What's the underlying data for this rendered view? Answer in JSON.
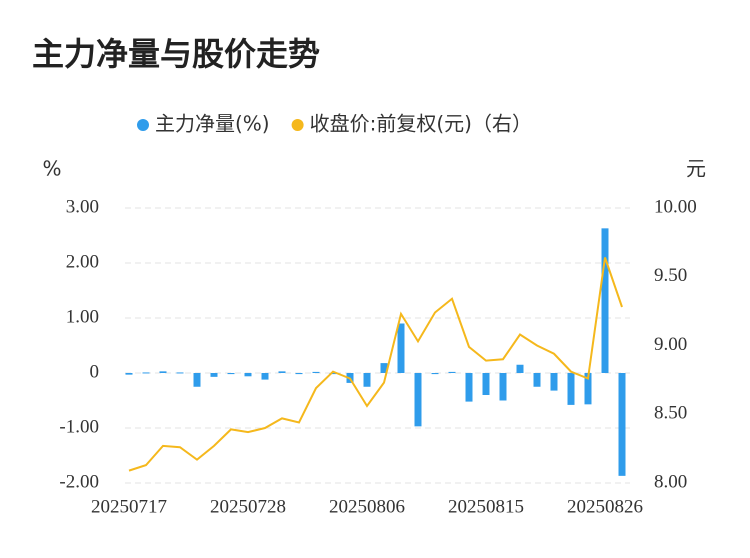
{
  "chart_data": {
    "type": "bar-line",
    "title": "主力净量与股价走势",
    "y_label": "%",
    "y2_label": "元",
    "categories": [
      "20250717",
      null,
      null,
      null,
      null,
      null,
      null,
      "20250728",
      null,
      null,
      null,
      null,
      null,
      null,
      "20250806",
      null,
      null,
      null,
      null,
      null,
      null,
      "20250815",
      null,
      null,
      null,
      null,
      null,
      null,
      "20250826",
      null
    ],
    "series": [
      {
        "name": "主力净量(%)",
        "type": "bar",
        "color": "#2f9ceb",
        "axis": "y",
        "values": [
          -0.03,
          0.01,
          0.03,
          0.01,
          -0.25,
          -0.07,
          -0.02,
          -0.06,
          -0.12,
          0.03,
          -0.02,
          0.02,
          -0.02,
          -0.18,
          -0.25,
          0.18,
          0.9,
          -0.97,
          -0.02,
          0.02,
          -0.52,
          -0.4,
          -0.5,
          0.15,
          -0.25,
          -0.32,
          -0.58,
          -0.57,
          2.63,
          -1.87
        ]
      },
      {
        "name": "收盘价:前复权(元)（右）",
        "type": "line",
        "color": "#f5b81c",
        "axis": "y2",
        "values": [
          8.09,
          8.13,
          8.27,
          8.26,
          8.17,
          8.27,
          8.39,
          8.37,
          8.4,
          8.47,
          8.44,
          8.69,
          8.81,
          8.76,
          8.56,
          8.73,
          9.23,
          9.03,
          9.24,
          9.34,
          8.99,
          8.89,
          8.9,
          9.08,
          9.0,
          8.94,
          8.81,
          8.76,
          9.64,
          9.28
        ]
      }
    ],
    "ylim": [
      -2,
      3
    ],
    "yticks": [
      {
        "value": 3,
        "label": "3.00"
      },
      {
        "value": 2,
        "label": "2.00"
      },
      {
        "value": 1,
        "label": "1.00"
      },
      0,
      {
        "value": -1,
        "label": "-1.00"
      },
      {
        "value": -2,
        "label": "-2.00"
      }
    ],
    "y2lim": [
      8,
      10
    ],
    "y2ticks": [
      {
        "value": 10,
        "label": "10.00"
      },
      {
        "value": 9.5,
        "label": "9.50"
      },
      {
        "value": 9,
        "label": "9.00"
      },
      {
        "value": 8.5,
        "label": "8.50"
      },
      {
        "value": 8,
        "label": "8.00"
      }
    ],
    "grid": true
  }
}
